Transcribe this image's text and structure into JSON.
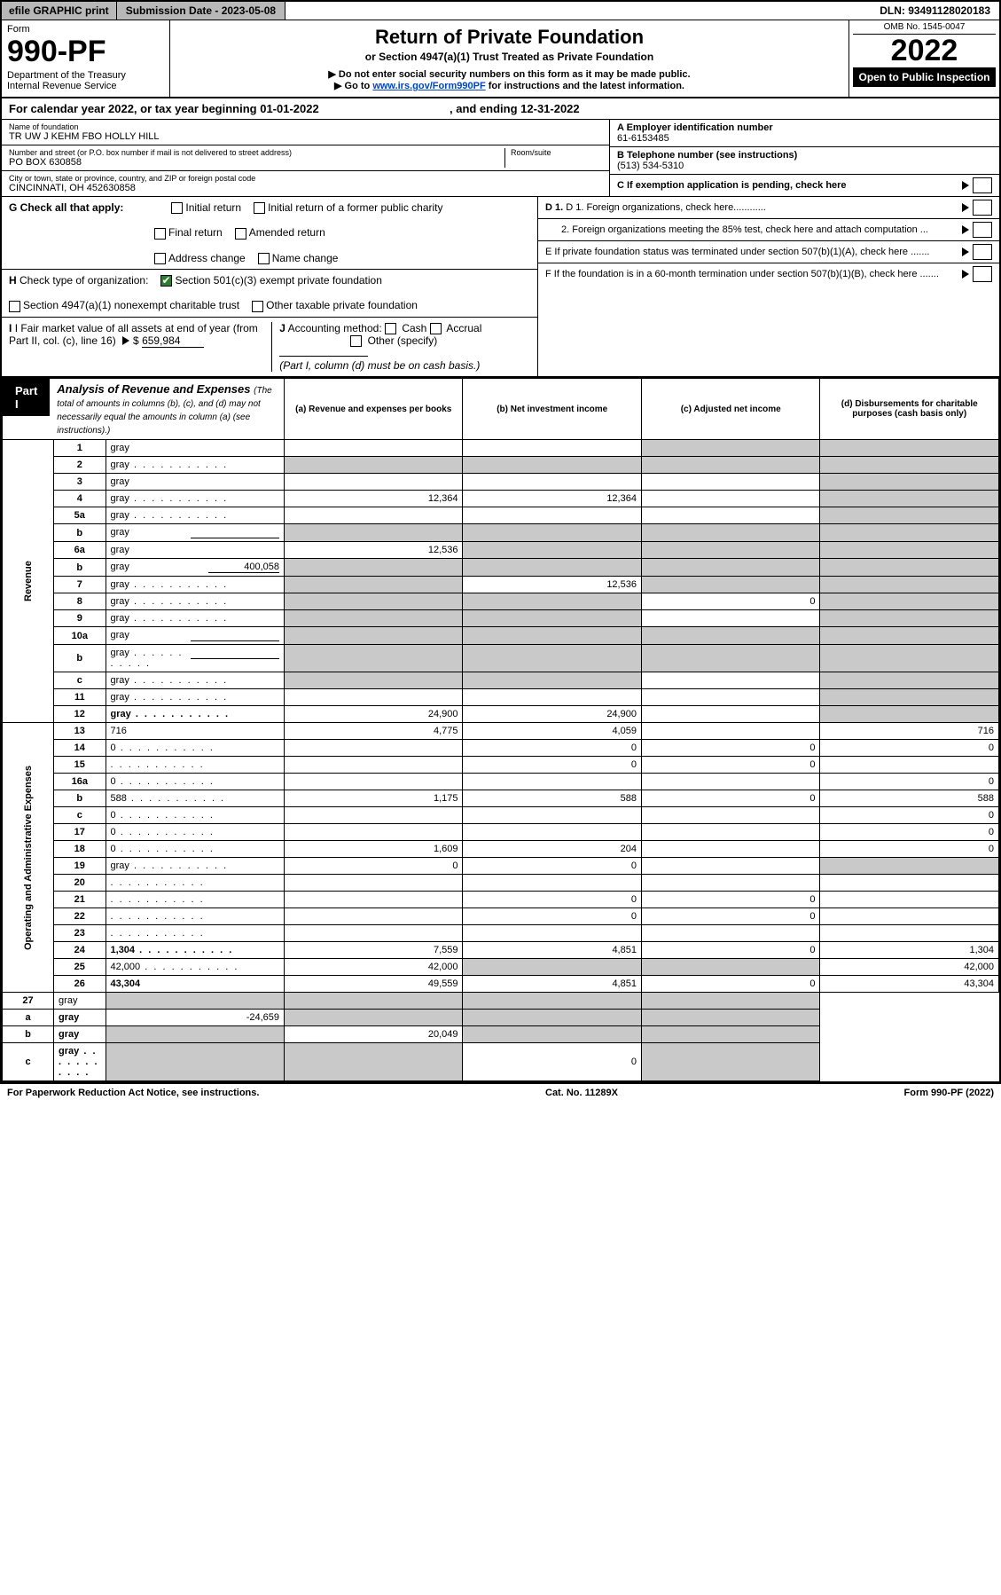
{
  "topbar": {
    "efile": "efile GRAPHIC print",
    "submission": "Submission Date - 2023-05-08",
    "dln": "DLN: 93491128020183"
  },
  "header": {
    "form_label": "Form",
    "form_no": "990-PF",
    "dept": "Department of the Treasury",
    "irs": "Internal Revenue Service",
    "title": "Return of Private Foundation",
    "subtitle": "or Section 4947(a)(1) Trust Treated as Private Foundation",
    "bullet1": "▶ Do not enter social security numbers on this form as it may be made public.",
    "bullet2_pre": "▶ Go to ",
    "bullet2_link": "www.irs.gov/Form990PF",
    "bullet2_post": " for instructions and the latest information.",
    "omb": "OMB No. 1545-0047",
    "year": "2022",
    "open": "Open to Public Inspection"
  },
  "cal_year": {
    "pre": "For calendar year 2022, or tax year beginning 01-01-2022",
    "mid": ", and ending 12-31-2022"
  },
  "info": {
    "name_lbl": "Name of foundation",
    "name_val": "TR UW J KEHM FBO HOLLY HILL",
    "addr_lbl": "Number and street (or P.O. box number if mail is not delivered to street address)",
    "room_lbl": "Room/suite",
    "addr_val": "PO BOX 630858",
    "city_lbl": "City or town, state or province, country, and ZIP or foreign postal code",
    "city_val": "CINCINNATI, OH  452630858",
    "a_lbl": "A Employer identification number",
    "a_val": "61-6153485",
    "b_lbl": "B Telephone number (see instructions)",
    "b_val": "(513) 534-5310",
    "c_lbl": "C If exemption application is pending, check here",
    "d1": "D 1. Foreign organizations, check here............",
    "d2": "2. Foreign organizations meeting the 85% test, check here and attach computation ...",
    "e_lbl": "E  If private foundation status was terminated under section 507(b)(1)(A), check here .......",
    "f_lbl": "F  If the foundation is in a 60-month termination under section 507(b)(1)(B), check here .......",
    "g_lbl": "G Check all that apply:",
    "g_opts": [
      "Initial return",
      "Initial return of a former public charity",
      "Final return",
      "Amended return",
      "Address change",
      "Name change"
    ],
    "h_lbl": "H Check type of organization:",
    "h1": "Section 501(c)(3) exempt private foundation",
    "h2": "Section 4947(a)(1) nonexempt charitable trust",
    "h3": "Other taxable private foundation",
    "i_lbl": "I Fair market value of all assets at end of year (from Part II, col. (c), line 16)",
    "i_val": "659,984",
    "j_lbl": "J Accounting method:",
    "j1": "Cash",
    "j2": "Accrual",
    "j3": "Other (specify)",
    "j_note": "(Part I, column (d) must be on cash basis.)"
  },
  "part1": {
    "tag": "Part I",
    "title": "Analysis of Revenue and Expenses",
    "note": "(The total of amounts in columns (b), (c), and (d) may not necessarily equal the amounts in column (a) (see instructions).)",
    "col_a": "(a)  Revenue and expenses per books",
    "col_b": "(b)  Net investment income",
    "col_c": "(c)  Adjusted net income",
    "col_d": "(d)  Disbursements for charitable purposes (cash basis only)"
  },
  "side_labels": {
    "rev": "Revenue",
    "exp": "Operating and Administrative Expenses"
  },
  "rows": [
    {
      "n": "1",
      "d": "gray",
      "a": "",
      "b": "",
      "c": "gray"
    },
    {
      "n": "2",
      "d": "gray",
      "a": "gray",
      "b": "gray",
      "c": "gray",
      "dots": true,
      "bold_not": true
    },
    {
      "n": "3",
      "d": "gray",
      "a": "",
      "b": "",
      "c": ""
    },
    {
      "n": "4",
      "d": "gray",
      "a": "12,364",
      "b": "12,364",
      "c": "",
      "dots": true
    },
    {
      "n": "5a",
      "d": "gray",
      "a": "",
      "b": "",
      "c": "",
      "dots": true
    },
    {
      "n": "b",
      "d": "gray",
      "a": "gray",
      "b": "gray",
      "c": "gray",
      "inline_box": true
    },
    {
      "n": "6a",
      "d": "gray",
      "a": "12,536",
      "b": "gray",
      "c": "gray"
    },
    {
      "n": "b",
      "d": "gray",
      "a": "gray",
      "b": "gray",
      "c": "gray",
      "inline_val": "400,058"
    },
    {
      "n": "7",
      "d": "gray",
      "a": "gray",
      "b": "12,536",
      "c": "gray",
      "dots": true
    },
    {
      "n": "8",
      "d": "gray",
      "a": "gray",
      "b": "gray",
      "c": "0",
      "dots": true
    },
    {
      "n": "9",
      "d": "gray",
      "a": "gray",
      "b": "gray",
      "c": "",
      "dots": true
    },
    {
      "n": "10a",
      "d": "gray",
      "a": "gray",
      "b": "gray",
      "c": "gray",
      "inline_box": true
    },
    {
      "n": "b",
      "d": "gray",
      "a": "gray",
      "b": "gray",
      "c": "gray",
      "inline_box": true,
      "dots": true
    },
    {
      "n": "c",
      "d": "gray",
      "a": "gray",
      "b": "gray",
      "c": "",
      "dots": true
    },
    {
      "n": "11",
      "d": "gray",
      "a": "",
      "b": "",
      "c": "",
      "dots": true
    },
    {
      "n": "12",
      "d": "gray",
      "a": "24,900",
      "b": "24,900",
      "c": "",
      "bold": true,
      "dots": true
    }
  ],
  "exp_rows": [
    {
      "n": "13",
      "d": "716",
      "a": "4,775",
      "b": "4,059",
      "c": ""
    },
    {
      "n": "14",
      "d": "0",
      "a": "",
      "b": "0",
      "c": "0",
      "dots": true
    },
    {
      "n": "15",
      "d": "",
      "a": "",
      "b": "0",
      "c": "0",
      "dots": true
    },
    {
      "n": "16a",
      "d": "0",
      "a": "",
      "b": "",
      "c": "",
      "dots": true
    },
    {
      "n": "b",
      "d": "588",
      "a": "1,175",
      "b": "588",
      "c": "0",
      "dots": true
    },
    {
      "n": "c",
      "d": "0",
      "a": "",
      "b": "",
      "c": "",
      "dots": true
    },
    {
      "n": "17",
      "d": "0",
      "a": "",
      "b": "",
      "c": "",
      "dots": true
    },
    {
      "n": "18",
      "d": "0",
      "a": "1,609",
      "b": "204",
      "c": "",
      "dots": true
    },
    {
      "n": "19",
      "d": "gray",
      "a": "0",
      "b": "0",
      "c": "",
      "dots": true
    },
    {
      "n": "20",
      "d": "",
      "a": "",
      "b": "",
      "c": "",
      "dots": true
    },
    {
      "n": "21",
      "d": "",
      "a": "",
      "b": "0",
      "c": "0",
      "dots": true
    },
    {
      "n": "22",
      "d": "",
      "a": "",
      "b": "0",
      "c": "0",
      "dots": true
    },
    {
      "n": "23",
      "d": "",
      "a": "",
      "b": "",
      "c": "",
      "dots": true
    },
    {
      "n": "24",
      "d": "1,304",
      "a": "7,559",
      "b": "4,851",
      "c": "0",
      "bold": true,
      "dots": true
    },
    {
      "n": "25",
      "d": "42,000",
      "a": "42,000",
      "b": "gray",
      "c": "gray",
      "dots": true
    },
    {
      "n": "26",
      "d": "43,304",
      "a": "49,559",
      "b": "4,851",
      "c": "0",
      "bold": true
    }
  ],
  "tail_rows": [
    {
      "n": "27",
      "d": "gray",
      "a": "gray",
      "b": "gray",
      "c": "gray"
    },
    {
      "n": "a",
      "d": "gray",
      "a": "-24,659",
      "b": "gray",
      "c": "gray",
      "bold": true
    },
    {
      "n": "b",
      "d": "gray",
      "a": "gray",
      "b": "20,049",
      "c": "gray",
      "bold": true
    },
    {
      "n": "c",
      "d": "gray",
      "a": "gray",
      "b": "gray",
      "c": "0",
      "bold": true,
      "dots": true
    }
  ],
  "footer": {
    "left": "For Paperwork Reduction Act Notice, see instructions.",
    "mid": "Cat. No. 11289X",
    "right": "Form 990-PF (2022)"
  }
}
